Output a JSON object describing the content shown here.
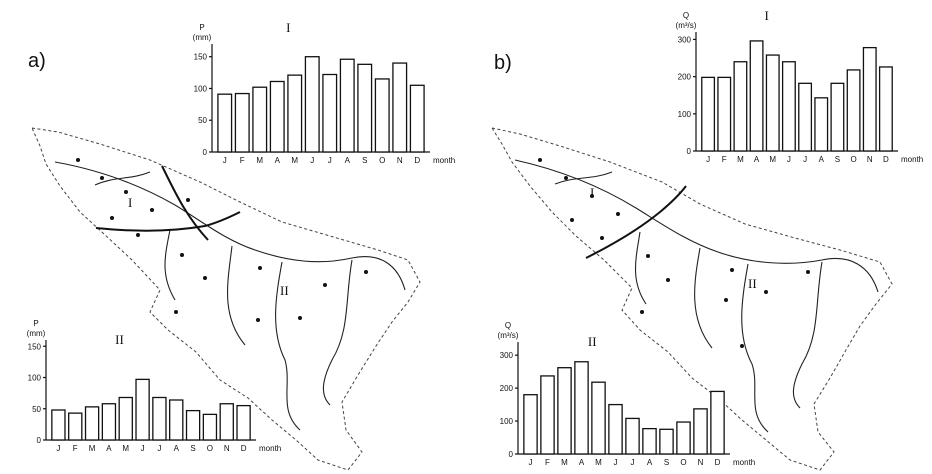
{
  "panels": {
    "a": "a)",
    "b": "b)"
  },
  "map_labels": {
    "a_zone1": "I",
    "a_zone2": "II",
    "b_zone1": "I",
    "b_zone2": "II"
  },
  "chart_data": [
    {
      "id": "a_I",
      "type": "bar",
      "title": "I",
      "ylabel": "P",
      "unit": "(mm)",
      "xlabel": "month",
      "categories": [
        "J",
        "F",
        "M",
        "A",
        "M",
        "J",
        "J",
        "A",
        "S",
        "O",
        "N",
        "D"
      ],
      "values": [
        91,
        92,
        102,
        111,
        121,
        150,
        122,
        146,
        138,
        115,
        140,
        105
      ],
      "ylim": [
        0,
        170
      ],
      "yticks": [
        0,
        50,
        100,
        150
      ],
      "grid": false
    },
    {
      "id": "a_II",
      "type": "bar",
      "title": "II",
      "ylabel": "P",
      "unit": "(mm)",
      "xlabel": "month",
      "categories": [
        "J",
        "F",
        "M",
        "A",
        "M",
        "J",
        "J",
        "A",
        "S",
        "O",
        "N",
        "D"
      ],
      "values": [
        48,
        43,
        53,
        58,
        68,
        97,
        68,
        64,
        47,
        41,
        58,
        55
      ],
      "ylim": [
        0,
        160
      ],
      "yticks": [
        0,
        50,
        100,
        150
      ],
      "grid": false
    },
    {
      "id": "b_I",
      "type": "bar",
      "title": "I",
      "ylabel": "Q",
      "unit": "(m³/s)",
      "xlabel": "month",
      "categories": [
        "J",
        "F",
        "M",
        "A",
        "M",
        "J",
        "J",
        "A",
        "S",
        "O",
        "N",
        "D"
      ],
      "values": [
        198,
        198,
        240,
        296,
        258,
        240,
        182,
        143,
        182,
        218,
        278,
        226
      ],
      "ylim": [
        0,
        320
      ],
      "yticks": [
        0,
        100,
        200,
        300
      ],
      "grid": false
    },
    {
      "id": "b_II",
      "type": "bar",
      "title": "II",
      "ylabel": "Q",
      "unit": "(m³/s)",
      "xlabel": "month",
      "categories": [
        "J",
        "F",
        "M",
        "A",
        "M",
        "J",
        "J",
        "A",
        "S",
        "O",
        "N",
        "D"
      ],
      "values": [
        180,
        237,
        262,
        280,
        218,
        150,
        108,
        77,
        75,
        97,
        137,
        190
      ],
      "ylim": [
        0,
        340
      ],
      "yticks": [
        0,
        100,
        200,
        300
      ],
      "grid": false
    }
  ]
}
